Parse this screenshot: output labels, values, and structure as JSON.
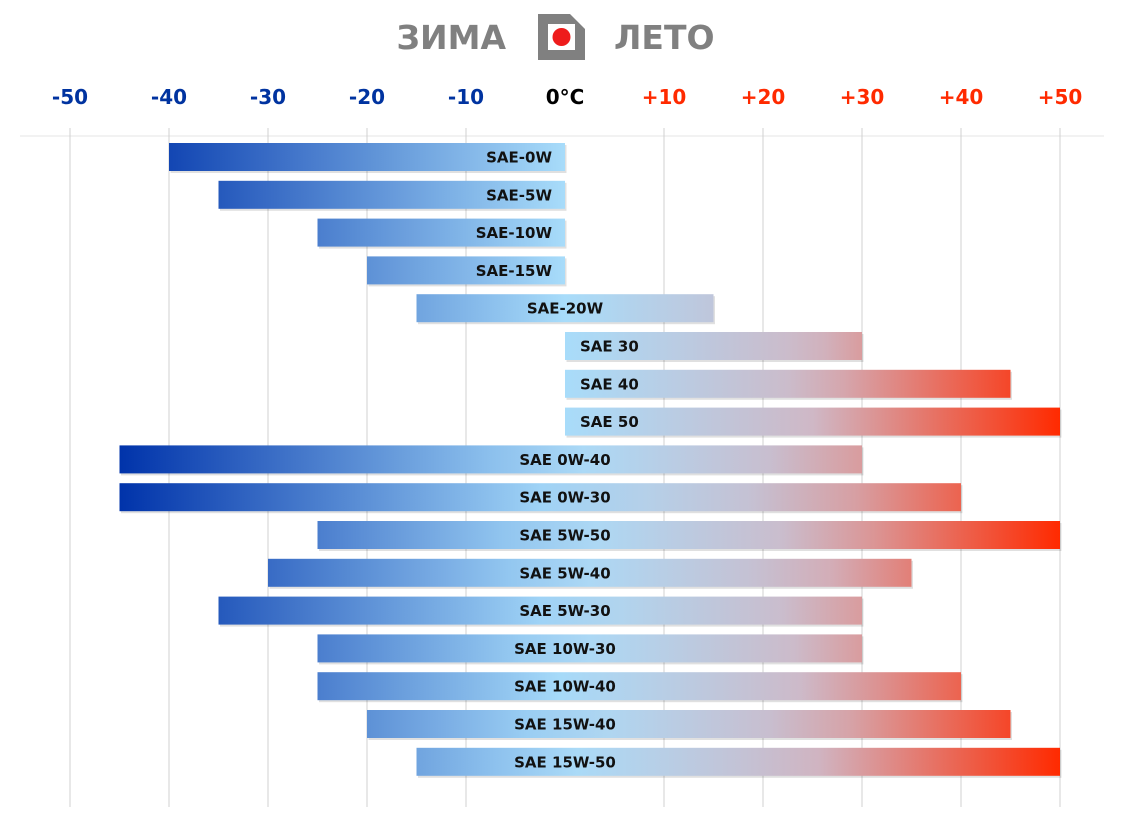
{
  "header": {
    "winter_label": "ЗИМА",
    "summer_label": "ЛЕТО",
    "logo_icon": "thermostat-logo-icon",
    "logo_frame_color": "#808080",
    "logo_dot_color": "#ee1c1c"
  },
  "colors": {
    "cold_text": "#0033a0",
    "hot_text": "#ff2a00",
    "zero_text": "#000000",
    "cold_dark": "#0033aa",
    "cold_light": "#a8dcfa",
    "warm_mid": "#cfb8c6",
    "hot": "#ff2a00",
    "grid": "#d0d0d0"
  },
  "chart_data": {
    "type": "bar",
    "orientation": "horizontal-range",
    "title": "",
    "xlabel": "",
    "ylabel": "",
    "xlim": [
      -55,
      55
    ],
    "grid": true,
    "x_ticks": [
      {
        "value": -50,
        "label": "-50"
      },
      {
        "value": -40,
        "label": "-40"
      },
      {
        "value": -30,
        "label": "-30"
      },
      {
        "value": -20,
        "label": "-20"
      },
      {
        "value": -10,
        "label": "-10"
      },
      {
        "value": 0,
        "label": "0°C"
      },
      {
        "value": 10,
        "label": "+10"
      },
      {
        "value": 20,
        "label": "+20"
      },
      {
        "value": 30,
        "label": "+30"
      },
      {
        "value": 40,
        "label": "+40"
      },
      {
        "value": 50,
        "label": "+50"
      }
    ],
    "bars": [
      {
        "label": "SAE-0W",
        "min": -40,
        "max": 0
      },
      {
        "label": "SAE-5W",
        "min": -35,
        "max": 0
      },
      {
        "label": "SAE-10W",
        "min": -25,
        "max": 0
      },
      {
        "label": "SAE-15W",
        "min": -20,
        "max": 0
      },
      {
        "label": "SAE-20W",
        "min": -15,
        "max": 15
      },
      {
        "label": "SAE 30",
        "min": 0,
        "max": 30
      },
      {
        "label": "SAE 40",
        "min": 0,
        "max": 45
      },
      {
        "label": "SAE 50",
        "min": 0,
        "max": 50
      },
      {
        "label": "SAE 0W-40",
        "min": -45,
        "max": 30
      },
      {
        "label": "SAE 0W-30",
        "min": -45,
        "max": 40
      },
      {
        "label": "SAE 5W-50",
        "min": -25,
        "max": 50
      },
      {
        "label": "SAE 5W-40",
        "min": -30,
        "max": 35
      },
      {
        "label": "SAE 5W-30",
        "min": -35,
        "max": 30
      },
      {
        "label": "SAE 10W-30",
        "min": -25,
        "max": 30
      },
      {
        "label": "SAE 10W-40",
        "min": -25,
        "max": 40
      },
      {
        "label": "SAE 15W-40",
        "min": -20,
        "max": 45
      },
      {
        "label": "SAE 15W-50",
        "min": -15,
        "max": 50
      }
    ]
  }
}
